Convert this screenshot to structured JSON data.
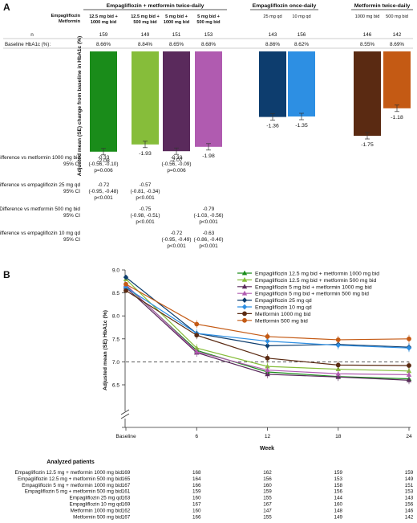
{
  "chart_data": [
    {
      "type": "bar",
      "panel_label": "A",
      "group_headers": [
        "Empagliflozin + metformin twice-daily",
        "Empagliflozin once-daily",
        "Metformin twice-daily"
      ],
      "row_labels": {
        "empagliflozin": "Empagliflozin",
        "metformin": "Metformin",
        "n": "n",
        "baseline": "Baseline HbA1c (%):"
      },
      "ylabel": "Adjusted mean (SE) change from baseline in HbA1c (%)",
      "ylim": [
        -2.2,
        0
      ],
      "grid": false,
      "bars": [
        {
          "label_line1": "12.5 mg bid +",
          "label_line2": "1000 mg bid",
          "n": "159",
          "baseline": "8.66%",
          "value": -2.08,
          "value_label": "-2.08",
          "color": "#1a8c1a"
        },
        {
          "label_line1": "12.5 mg bid +",
          "label_line2": "500 mg bid",
          "n": "149",
          "baseline": "8.84%",
          "value": -1.93,
          "value_label": "-1.93",
          "color": "#86bd3a"
        },
        {
          "label_line1": "5 mg bid +",
          "label_line2": "1000 mg bid",
          "n": "151",
          "baseline": "8.65%",
          "value": -2.07,
          "value_label": "-2.07",
          "color": "#5a2a5c"
        },
        {
          "label_line1": "5 mg bid +",
          "label_line2": "500 mg bid",
          "n": "153",
          "baseline": "8.68%",
          "value": -1.98,
          "value_label": "-1.98",
          "color": "#b05bb0"
        },
        {
          "label_line1": "25 mg qd",
          "label_line2": "",
          "n": "143",
          "baseline": "8.86%",
          "value": -1.36,
          "value_label": "-1.36",
          "color": "#0d3d6e"
        },
        {
          "label_line1": "10 mg qd",
          "label_line2": "",
          "n": "156",
          "baseline": "8.62%",
          "value": -1.35,
          "value_label": "-1.35",
          "color": "#2d8fe3"
        },
        {
          "label_line1": "1000 mg bid",
          "label_line2": "",
          "n": "146",
          "baseline": "8.55%",
          "value": -1.75,
          "value_label": "-1.75",
          "color": "#5a2a12"
        },
        {
          "label_line1": "500 mg bid",
          "label_line2": "",
          "n": "142",
          "baseline": "8.69%",
          "value": -1.18,
          "value_label": "-1.18",
          "color": "#c45a14"
        }
      ],
      "comparisons": [
        {
          "label": "Difference vs metformin 1000 mg bid",
          "sublabel": "95% CI",
          "cells": [
            {
              "bar": 0,
              "lines": [
                "-0.33",
                "(-0.56, -0.10)",
                "p=0.006"
              ]
            },
            {
              "bar": 2,
              "lines": [
                "-0.33",
                "(-0.56, -0.09)",
                "p=0.006"
              ]
            }
          ]
        },
        {
          "label": "Difference vs empagliflozin 25 mg qd",
          "sublabel": "95% CI",
          "cells": [
            {
              "bar": 0,
              "lines": [
                "-0.72",
                "(-0.95, -0.48)",
                "p<0.001"
              ]
            },
            {
              "bar": 1,
              "lines": [
                "-0.57",
                "(-0.81, -0.34)",
                "p<0.001"
              ]
            }
          ]
        },
        {
          "label": "Difference vs metformin 500 mg bid",
          "sublabel": "95% CI",
          "cells": [
            {
              "bar": 1,
              "lines": [
                "-0.75",
                "(-0.98, -0.51)",
                "p<0.001"
              ]
            },
            {
              "bar": 3,
              "lines": [
                "-0.79",
                "(-1.03, -0.56)",
                "p<0.001"
              ]
            }
          ]
        },
        {
          "label": "Difference vs empagliflozin 10 mg qd",
          "sublabel": "95% CI",
          "cells": [
            {
              "bar": 2,
              "lines": [
                "-0.72",
                "(-0.95, -0.49)",
                "p<0.001"
              ]
            },
            {
              "bar": 3,
              "lines": [
                "-0.63",
                "(-0.86, -0.40)",
                "p<0.001"
              ]
            }
          ]
        }
      ]
    },
    {
      "type": "line",
      "panel_label": "B",
      "xlabel": "Week",
      "ylabel": "Adjusted mean (SE) HbA1c (%)",
      "x": [
        "Baseline",
        "6",
        "12",
        "18",
        "24"
      ],
      "yticks": [
        "6.5",
        "7.0",
        "7.5",
        "8.0",
        "8.5",
        "9.0"
      ],
      "ylim": [
        6.5,
        9.0
      ],
      "axis_break": true,
      "reference_line": 7.0,
      "grid": false,
      "legend_position": "top-right",
      "series": [
        {
          "name": "Empagliflozin 12.5 mg bid + metformin 1000 mg bid",
          "color": "#1a8c1a",
          "marker": "triangle",
          "values": [
            8.66,
            7.25,
            6.78,
            6.68,
            6.63
          ]
        },
        {
          "name": "Empagliflozin 12.5 mg bid + metformin 500 mg bid",
          "color": "#86bd3a",
          "marker": "triangle",
          "values": [
            8.8,
            7.3,
            6.9,
            6.84,
            6.8
          ]
        },
        {
          "name": "Empagliflozin 5 mg bid + metformin 1000 mg bid",
          "color": "#5a2a5c",
          "marker": "triangle",
          "values": [
            8.62,
            7.2,
            6.73,
            6.67,
            6.6
          ]
        },
        {
          "name": "Empagliflozin 5 mg bid + metformin 500 mg bid",
          "color": "#b05bb0",
          "marker": "triangle",
          "values": [
            8.68,
            7.22,
            6.82,
            6.74,
            6.72
          ]
        },
        {
          "name": "Empagliflozin 25 mg qd",
          "color": "#0d3d6e",
          "marker": "diamond",
          "values": [
            8.84,
            7.62,
            7.35,
            7.38,
            7.32
          ]
        },
        {
          "name": "Empagliflozin 10 mg qd",
          "color": "#2d8fe3",
          "marker": "diamond",
          "values": [
            8.62,
            7.62,
            7.45,
            7.36,
            7.3
          ]
        },
        {
          "name": "Metformin 1000 mg bid",
          "color": "#5a2a12",
          "marker": "circle",
          "values": [
            8.55,
            7.58,
            7.08,
            6.93,
            6.92
          ]
        },
        {
          "name": "Metformin 500 mg bid",
          "color": "#c45a14",
          "marker": "circle",
          "values": [
            8.69,
            7.82,
            7.55,
            7.48,
            7.5
          ]
        }
      ],
      "analyzed_patients": {
        "title": "Analyzed patients",
        "rows": [
          {
            "label": "Empagliflozin 12.5 mg + metformin 1000 mg bid",
            "values": [
              "169",
              "168",
              "162",
              "159",
              "159"
            ]
          },
          {
            "label": "Empagliflozin 12.5 mg + metformin 500 mg bid",
            "values": [
              "165",
              "164",
              "156",
              "153",
              "149"
            ]
          },
          {
            "label": "Empagliflozin 5 mg + metformin 1000 mg bid",
            "values": [
              "167",
              "166",
              "160",
              "158",
              "151"
            ]
          },
          {
            "label": "Empagliflozin 5 mg + metformin 500 mg bid",
            "values": [
              "161",
              "159",
              "159",
              "156",
              "153"
            ]
          },
          {
            "label": "Empagliflozin 25 mg qd",
            "values": [
              "163",
              "160",
              "155",
              "144",
              "143"
            ]
          },
          {
            "label": "Empagliflozin 10 mg qd",
            "values": [
              "169",
              "167",
              "167",
              "160",
              "156"
            ]
          },
          {
            "label": "Metformin 1000 mg bid",
            "values": [
              "162",
              "160",
              "147",
              "148",
              "146"
            ]
          },
          {
            "label": "Metformin 500 mg bid",
            "values": [
              "167",
              "166",
              "155",
              "149",
              "142"
            ]
          }
        ]
      }
    }
  ]
}
